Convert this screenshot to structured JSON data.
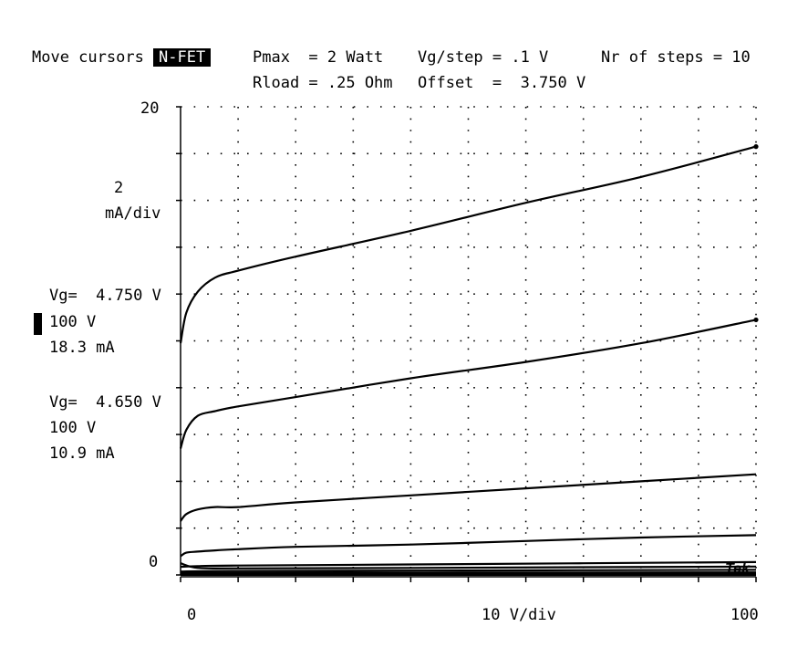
{
  "header": {
    "move_cursors_label": "Move cursors",
    "device_button": "N-FET",
    "pmax": "Pmax  = 2 Watt",
    "vg_step": "Vg/step = .1 V",
    "nr_steps": "Nr of steps = 10",
    "rload": "Rload = .25 Ohm",
    "offset": "Offset  =  3.750 V"
  },
  "scale": {
    "y_div_value": "2",
    "y_div_unit": "mA/div",
    "x_div_label": "10 V/div",
    "brand": "Tek"
  },
  "cursors": [
    {
      "vg": "Vg=  4.750 V",
      "vd": "100 V",
      "id": "18.3 mA"
    },
    {
      "vg": "Vg=  4.650 V",
      "vd": "100 V",
      "id": "10.9 mA"
    }
  ],
  "colors": {
    "trace": "#000000",
    "background": "#ffffff",
    "grid_dot": "#000000"
  },
  "chart_data": {
    "type": "line",
    "title": "",
    "xlabel": "10 V/div",
    "ylabel": "2 mA/div",
    "xlim": [
      0,
      100
    ],
    "ylim": [
      0,
      20
    ],
    "x_tick_labels": [
      "0",
      "100"
    ],
    "y_tick_labels": [
      "0",
      "20"
    ],
    "grid": true,
    "legend": "none",
    "series": [
      {
        "x": [
          0,
          1,
          3,
          6,
          10,
          20,
          40,
          60,
          80,
          100
        ],
        "values": [
          9.9,
          11.2,
          12.1,
          12.7,
          13.0,
          13.6,
          14.7,
          15.9,
          17.0,
          18.3
        ]
      },
      {
        "x": [
          0,
          1,
          3,
          6,
          10,
          20,
          40,
          60,
          80,
          100
        ],
        "values": [
          5.4,
          6.2,
          6.8,
          7.0,
          7.2,
          7.6,
          8.4,
          9.1,
          9.9,
          10.9
        ]
      },
      {
        "x": [
          0,
          1,
          3,
          6,
          10,
          20,
          40,
          60,
          80,
          100
        ],
        "values": [
          2.3,
          2.6,
          2.8,
          2.9,
          2.9,
          3.1,
          3.4,
          3.7,
          4.0,
          4.3
        ]
      },
      {
        "x": [
          0,
          1,
          3,
          6,
          10,
          20,
          40,
          60,
          80,
          100
        ],
        "values": [
          0.8,
          0.95,
          1.0,
          1.05,
          1.1,
          1.2,
          1.3,
          1.45,
          1.6,
          1.7
        ]
      },
      {
        "x": [
          0,
          3,
          10,
          40,
          70,
          100
        ],
        "values": [
          0.35,
          0.38,
          0.4,
          0.45,
          0.5,
          0.55
        ]
      },
      {
        "x": [
          0,
          3,
          10,
          40,
          70,
          100
        ],
        "values": [
          0.5,
          0.3,
          0.28,
          0.3,
          0.33,
          0.36
        ]
      },
      {
        "x": [
          0,
          10,
          50,
          100
        ],
        "values": [
          0.15,
          0.17,
          0.19,
          0.22
        ]
      },
      {
        "x": [
          0,
          10,
          50,
          100
        ],
        "values": [
          0.08,
          0.09,
          0.1,
          0.11
        ]
      },
      {
        "x": [
          0,
          50,
          100
        ],
        "values": [
          0.03,
          0.04,
          0.05
        ]
      },
      {
        "x": [
          0,
          50,
          100
        ],
        "values": [
          0.0,
          0.0,
          0.0
        ]
      }
    ]
  }
}
